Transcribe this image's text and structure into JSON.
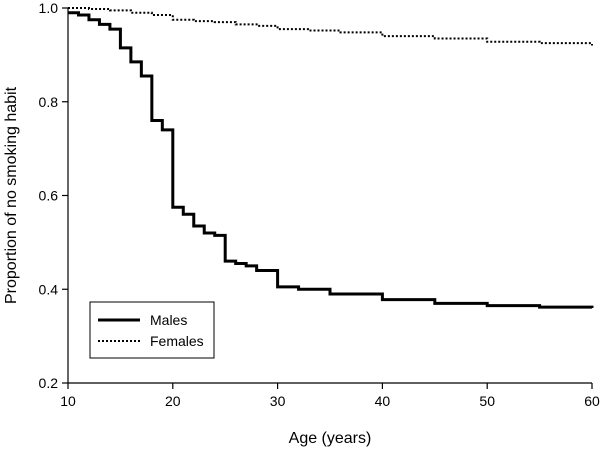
{
  "chart_data": {
    "type": "line",
    "title": "",
    "xlabel": "Age (years)",
    "ylabel": "Proportion of no smoking habit",
    "xlim": [
      10,
      60
    ],
    "ylim": [
      0.2,
      1.0
    ],
    "x_ticks": [
      10,
      20,
      30,
      40,
      50,
      60
    ],
    "x_tick_labels": [
      "10",
      "20",
      "30",
      "40",
      "50",
      "60"
    ],
    "y_ticks": [
      0.2,
      0.4,
      0.6,
      0.8,
      1.0
    ],
    "y_tick_labels": [
      "0.2",
      "0.4",
      "0.6",
      "0.8",
      "1.0"
    ],
    "grid": false,
    "legend_position": "bottom-left",
    "step": true,
    "series": [
      {
        "name": "Males",
        "line_style": "solid",
        "color": "#000000",
        "x": [
          10,
          11,
          12,
          13,
          14,
          15,
          16,
          17,
          18,
          19,
          20,
          21,
          22,
          23,
          24,
          25,
          26,
          27,
          28,
          30,
          32,
          35,
          40,
          45,
          50,
          55,
          60
        ],
        "y": [
          0.99,
          0.985,
          0.975,
          0.965,
          0.955,
          0.915,
          0.885,
          0.855,
          0.76,
          0.74,
          0.575,
          0.56,
          0.535,
          0.52,
          0.515,
          0.46,
          0.455,
          0.45,
          0.44,
          0.405,
          0.4,
          0.39,
          0.378,
          0.37,
          0.365,
          0.362,
          0.36
        ]
      },
      {
        "name": "Females",
        "line_style": "dotted",
        "color": "#000000",
        "x": [
          10,
          12,
          14,
          16,
          18,
          20,
          22,
          24,
          26,
          28,
          30,
          33,
          36,
          40,
          45,
          50,
          55,
          60
        ],
        "y": [
          1.0,
          0.998,
          0.995,
          0.99,
          0.985,
          0.975,
          0.972,
          0.97,
          0.965,
          0.962,
          0.955,
          0.952,
          0.948,
          0.94,
          0.935,
          0.928,
          0.925,
          0.92
        ]
      }
    ]
  }
}
